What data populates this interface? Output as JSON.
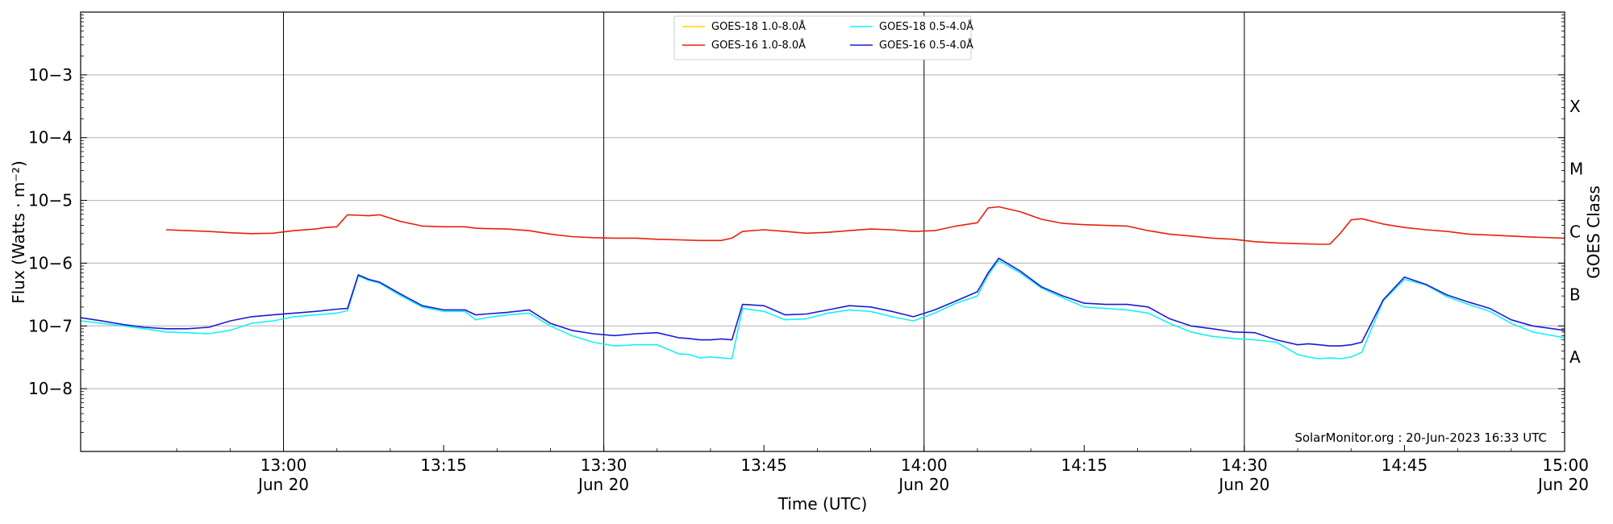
{
  "chart_data": {
    "type": "line",
    "xlabel": "Time (UTC)",
    "ylabel": "Flux (Watts · m⁻²)",
    "y2label": "GOES Class",
    "yscale": "log",
    "ylim": [
      1e-09,
      0.01
    ],
    "xlim_minutes": [
      "12:41",
      "15:00"
    ],
    "date": "Jun 20",
    "grid": "horizontal",
    "legend_position": "top-center",
    "y_ticks": [
      {
        "value": 1e-08,
        "label": "10−8"
      },
      {
        "value": 1e-07,
        "label": "10−7"
      },
      {
        "value": 1e-06,
        "label": "10−6"
      },
      {
        "value": 1e-05,
        "label": "10−5"
      },
      {
        "value": 0.0001,
        "label": "10−4"
      },
      {
        "value": 0.001,
        "label": "10−3"
      }
    ],
    "x_ticks": [
      {
        "time": "13:00",
        "date_label": "Jun 20"
      },
      {
        "time": "13:15",
        "date_label": ""
      },
      {
        "time": "13:30",
        "date_label": "Jun 20"
      },
      {
        "time": "13:45",
        "date_label": ""
      },
      {
        "time": "14:00",
        "date_label": "Jun 20"
      },
      {
        "time": "14:15",
        "date_label": ""
      },
      {
        "time": "14:30",
        "date_label": "Jun 20"
      },
      {
        "time": "14:45",
        "date_label": ""
      },
      {
        "time": "15:00",
        "date_label": "Jun 20"
      }
    ],
    "vertical_lines": [
      "13:00",
      "13:30",
      "14:00",
      "14:30"
    ],
    "goes_classes": [
      {
        "label": "A",
        "value": 3.16e-08
      },
      {
        "label": "B",
        "value": 3.16e-07
      },
      {
        "label": "C",
        "value": 3.16e-06
      },
      {
        "label": "M",
        "value": 3.16e-05
      },
      {
        "label": "X",
        "value": 0.000316
      }
    ],
    "series": [
      {
        "name": "GOES-18 1.0-8.0Å",
        "color": "#ffd700",
        "times": [],
        "values": []
      },
      {
        "name": "GOES-16 1.0-8.0Å",
        "color": "#e8200c",
        "times": [
          "12:49",
          "12:51",
          "12:53",
          "12:55",
          "12:57",
          "12:59",
          "13:01",
          "13:03",
          "13:04",
          "13:05",
          "13:06",
          "13:07",
          "13:08",
          "13:09",
          "13:11",
          "13:13",
          "13:15",
          "13:17",
          "13:18",
          "13:19",
          "13:21",
          "13:23",
          "13:25",
          "13:27",
          "13:29",
          "13:31",
          "13:33",
          "13:35",
          "13:37",
          "13:39",
          "13:41",
          "13:42",
          "13:43",
          "13:45",
          "13:47",
          "13:49",
          "13:51",
          "13:53",
          "13:55",
          "13:57",
          "13:59",
          "14:01",
          "14:03",
          "14:05",
          "14:06",
          "14:07",
          "14:09",
          "14:11",
          "14:13",
          "14:15",
          "14:17",
          "14:19",
          "14:21",
          "14:23",
          "14:25",
          "14:27",
          "14:29",
          "14:31",
          "14:33",
          "14:35",
          "14:37",
          "14:38",
          "14:39",
          "14:40",
          "14:41",
          "14:43",
          "14:45",
          "14:47",
          "14:49",
          "14:51",
          "14:53",
          "14:55",
          "14:57",
          "15:00"
        ],
        "values": [
          3.4e-06,
          3.3e-06,
          3.2e-06,
          3.05e-06,
          2.95e-06,
          3e-06,
          3.3e-06,
          3.5e-06,
          3.7e-06,
          3.8e-06,
          5.9e-06,
          5.8e-06,
          5.7e-06,
          5.9e-06,
          4.6e-06,
          3.9e-06,
          3.8e-06,
          3.8e-06,
          3.6e-06,
          3.55e-06,
          3.5e-06,
          3.3e-06,
          2.9e-06,
          2.65e-06,
          2.55e-06,
          2.5e-06,
          2.5e-06,
          2.4e-06,
          2.35e-06,
          2.3e-06,
          2.3e-06,
          2.5e-06,
          3.2e-06,
          3.4e-06,
          3.2e-06,
          3e-06,
          3.1e-06,
          3.3e-06,
          3.5e-06,
          3.4e-06,
          3.2e-06,
          3.3e-06,
          3.9e-06,
          4.4e-06,
          7.6e-06,
          7.9e-06,
          6.6e-06,
          5e-06,
          4.3e-06,
          4.1e-06,
          4e-06,
          3.9e-06,
          3.3e-06,
          2.9e-06,
          2.7e-06,
          2.5e-06,
          2.4e-06,
          2.2e-06,
          2.1e-06,
          2.05e-06,
          2e-06,
          2e-06,
          3e-06,
          4.9e-06,
          5.1e-06,
          4.2e-06,
          3.7e-06,
          3.4e-06,
          3.2e-06,
          2.9e-06,
          2.8e-06,
          2.7e-06,
          2.6e-06,
          2.5e-06
        ]
      },
      {
        "name": "GOES-18 0.5-4.0Å",
        "color": "#18f0f0",
        "times": [
          "12:41",
          "12:43",
          "12:45",
          "12:47",
          "12:49",
          "12:51",
          "12:53",
          "12:55",
          "12:57",
          "12:59",
          "13:01",
          "13:03",
          "13:05",
          "13:06",
          "13:07",
          "13:08",
          "13:09",
          "13:11",
          "13:13",
          "13:15",
          "13:17",
          "13:18",
          "13:19",
          "13:21",
          "13:23",
          "13:25",
          "13:27",
          "13:29",
          "13:31",
          "13:33",
          "13:35",
          "13:37",
          "13:38",
          "13:39",
          "13:40",
          "13:41",
          "13:42",
          "13:43",
          "13:45",
          "13:47",
          "13:49",
          "13:51",
          "13:53",
          "13:55",
          "13:57",
          "13:59",
          "14:01",
          "14:03",
          "14:05",
          "14:06",
          "14:07",
          "14:09",
          "14:11",
          "14:13",
          "14:15",
          "14:17",
          "14:19",
          "14:21",
          "14:23",
          "14:25",
          "14:27",
          "14:29",
          "14:31",
          "14:33",
          "14:35",
          "14:36",
          "14:37",
          "14:38",
          "14:39",
          "14:40",
          "14:41",
          "14:43",
          "14:45",
          "14:47",
          "14:49",
          "14:51",
          "14:53",
          "14:55",
          "14:57",
          "15:00"
        ],
        "values": [
          1.2e-07,
          1.1e-07,
          1e-07,
          9e-08,
          8e-08,
          7.8e-08,
          7.5e-08,
          8.5e-08,
          1.1e-07,
          1.2e-07,
          1.4e-07,
          1.5e-07,
          1.6e-07,
          1.75e-07,
          6.3e-07,
          5.3e-07,
          4.8e-07,
          3e-07,
          2e-07,
          1.7e-07,
          1.7e-07,
          1.25e-07,
          1.35e-07,
          1.5e-07,
          1.6e-07,
          1e-07,
          7e-08,
          5.5e-08,
          4.8e-08,
          5e-08,
          5e-08,
          3.6e-08,
          3.5e-08,
          3.1e-08,
          3.2e-08,
          3.1e-08,
          3e-08,
          1.9e-07,
          1.7e-07,
          1.25e-07,
          1.3e-07,
          1.6e-07,
          1.8e-07,
          1.7e-07,
          1.4e-07,
          1.2e-07,
          1.6e-07,
          2.3e-07,
          3e-07,
          6.5e-07,
          1.1e-06,
          7e-07,
          4e-07,
          2.8e-07,
          2e-07,
          1.9e-07,
          1.8e-07,
          1.6e-07,
          1.1e-07,
          8e-08,
          6.8e-08,
          6.3e-08,
          6e-08,
          5.5e-08,
          3.5e-08,
          3.2e-08,
          3e-08,
          3.1e-08,
          3e-08,
          3.2e-08,
          3.8e-08,
          2.5e-07,
          5.5e-07,
          4.5e-07,
          2.9e-07,
          2.2e-07,
          1.7e-07,
          1.1e-07,
          8e-08,
          6.5e-08
        ]
      },
      {
        "name": "GOES-16 0.5-4.0Å",
        "color": "#1a1ad6",
        "times": [
          "12:41",
          "12:43",
          "12:45",
          "12:47",
          "12:49",
          "12:51",
          "12:53",
          "12:55",
          "12:57",
          "12:59",
          "13:01",
          "13:03",
          "13:05",
          "13:06",
          "13:07",
          "13:08",
          "13:09",
          "13:11",
          "13:13",
          "13:15",
          "13:17",
          "13:18",
          "13:19",
          "13:21",
          "13:23",
          "13:25",
          "13:27",
          "13:29",
          "13:31",
          "13:33",
          "13:35",
          "13:37",
          "13:38",
          "13:39",
          "13:40",
          "13:41",
          "13:42",
          "13:43",
          "13:45",
          "13:47",
          "13:49",
          "13:51",
          "13:53",
          "13:55",
          "13:57",
          "13:59",
          "14:01",
          "14:03",
          "14:05",
          "14:06",
          "14:07",
          "14:09",
          "14:11",
          "14:13",
          "14:15",
          "14:17",
          "14:19",
          "14:21",
          "14:23",
          "14:25",
          "14:27",
          "14:29",
          "14:31",
          "14:33",
          "14:35",
          "14:36",
          "14:37",
          "14:38",
          "14:39",
          "14:40",
          "14:41",
          "14:43",
          "14:45",
          "14:47",
          "14:49",
          "14:51",
          "14:53",
          "14:55",
          "14:57",
          "15:00"
        ],
        "values": [
          1.35e-07,
          1.2e-07,
          1.05e-07,
          9.5e-08,
          9e-08,
          9e-08,
          9.5e-08,
          1.2e-07,
          1.4e-07,
          1.5e-07,
          1.6e-07,
          1.7e-07,
          1.85e-07,
          1.9e-07,
          6.5e-07,
          5.5e-07,
          5e-07,
          3.2e-07,
          2.1e-07,
          1.8e-07,
          1.8e-07,
          1.5e-07,
          1.55e-07,
          1.65e-07,
          1.8e-07,
          1.1e-07,
          8.5e-08,
          7.5e-08,
          7e-08,
          7.5e-08,
          7.8e-08,
          6.5e-08,
          6.3e-08,
          6e-08,
          6e-08,
          6.2e-08,
          6e-08,
          2.2e-07,
          2.1e-07,
          1.5e-07,
          1.55e-07,
          1.8e-07,
          2.1e-07,
          2e-07,
          1.7e-07,
          1.4e-07,
          1.8e-07,
          2.5e-07,
          3.5e-07,
          7e-07,
          1.2e-06,
          7.5e-07,
          4.2e-07,
          3e-07,
          2.3e-07,
          2.2e-07,
          2.2e-07,
          2e-07,
          1.3e-07,
          1e-07,
          9e-08,
          8e-08,
          7.8e-08,
          6e-08,
          5e-08,
          5.2e-08,
          5e-08,
          4.8e-08,
          4.8e-08,
          5e-08,
          5.5e-08,
          2.6e-07,
          6e-07,
          4.6e-07,
          3.1e-07,
          2.4e-07,
          1.9e-07,
          1.25e-07,
          1e-07,
          8.5e-08
        ]
      }
    ],
    "legend_columns": [
      [
        "GOES-18 1.0-8.0Å",
        "GOES-16 1.0-8.0Å"
      ],
      [
        "GOES-18 0.5-4.0Å",
        "GOES-16 0.5-4.0Å"
      ]
    ],
    "credit": "SolarMonitor.org : 20-Jun-2023 16:33 UTC"
  }
}
